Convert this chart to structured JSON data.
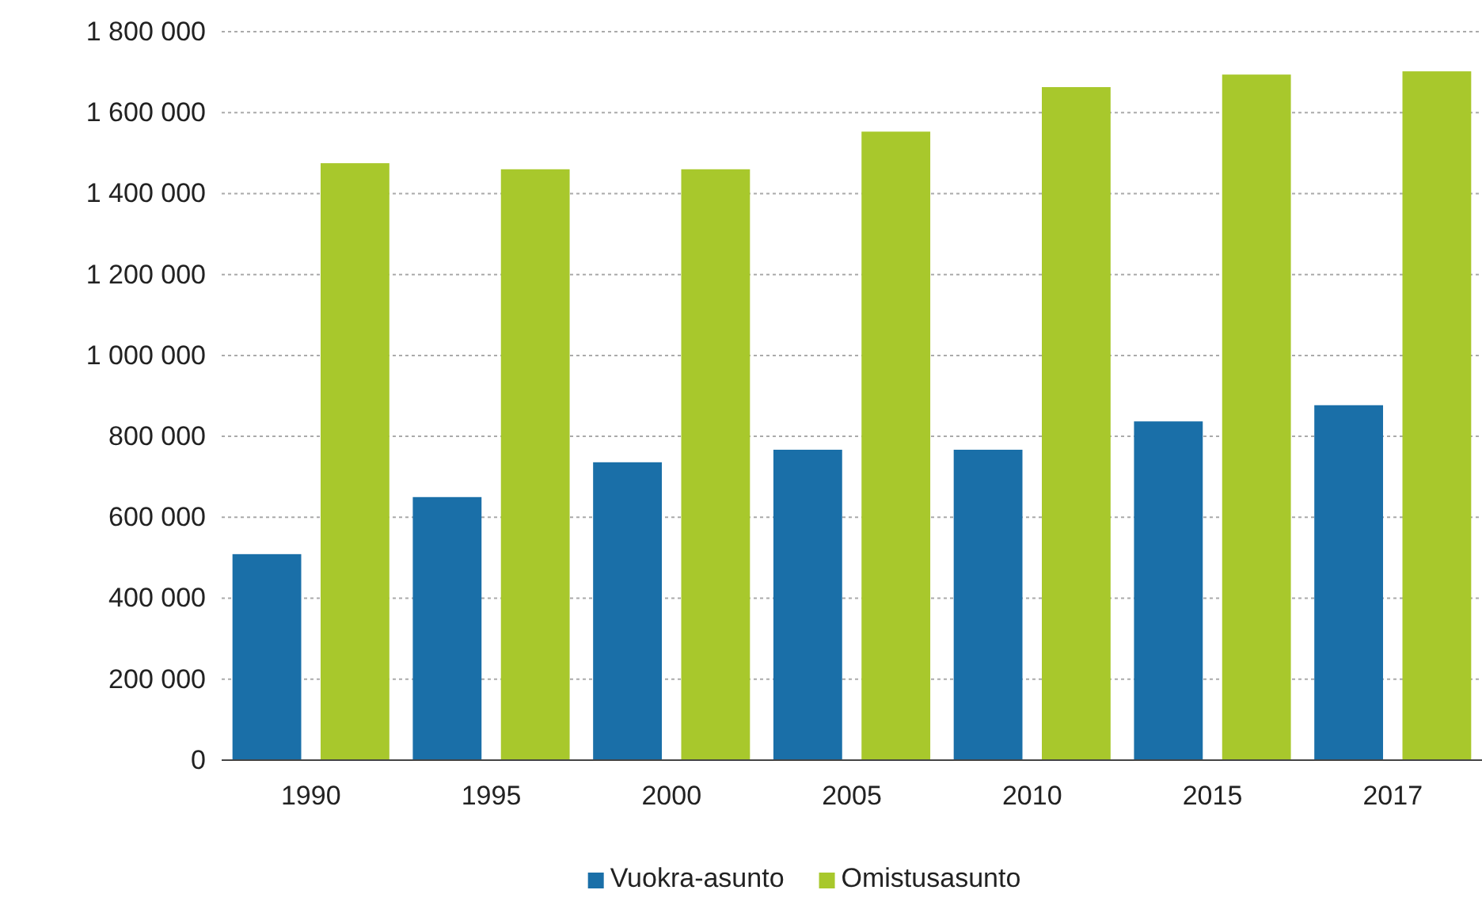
{
  "chart_data": {
    "type": "bar",
    "categories": [
      "1990",
      "1995",
      "2000",
      "2005",
      "2010",
      "2015",
      "2017"
    ],
    "series": [
      {
        "name": "Vuokra-asunto",
        "color": "#1a6fa8",
        "values": [
          509000,
          650000,
          736000,
          767000,
          767000,
          837000,
          877000
        ]
      },
      {
        "name": "Omistusasunto",
        "color": "#a8c82c",
        "values": [
          1475000,
          1460000,
          1460000,
          1553000,
          1663000,
          1694000,
          1702000
        ]
      }
    ],
    "ylim": [
      0,
      1800000
    ],
    "yticks": [
      {
        "value": 0,
        "label": "0"
      },
      {
        "value": 200000,
        "label": "200 000"
      },
      {
        "value": 400000,
        "label": "400 000"
      },
      {
        "value": 600000,
        "label": "600 000"
      },
      {
        "value": 800000,
        "label": "800 000"
      },
      {
        "value": 1000000,
        "label": "1 000 000"
      },
      {
        "value": 1200000,
        "label": "1 200 000"
      },
      {
        "value": 1400000,
        "label": "1 400 000"
      },
      {
        "value": 1600000,
        "label": "1 600 000"
      },
      {
        "value": 1800000,
        "label": "1 800 000"
      }
    ],
    "grid": "y",
    "legend": "bottom"
  }
}
